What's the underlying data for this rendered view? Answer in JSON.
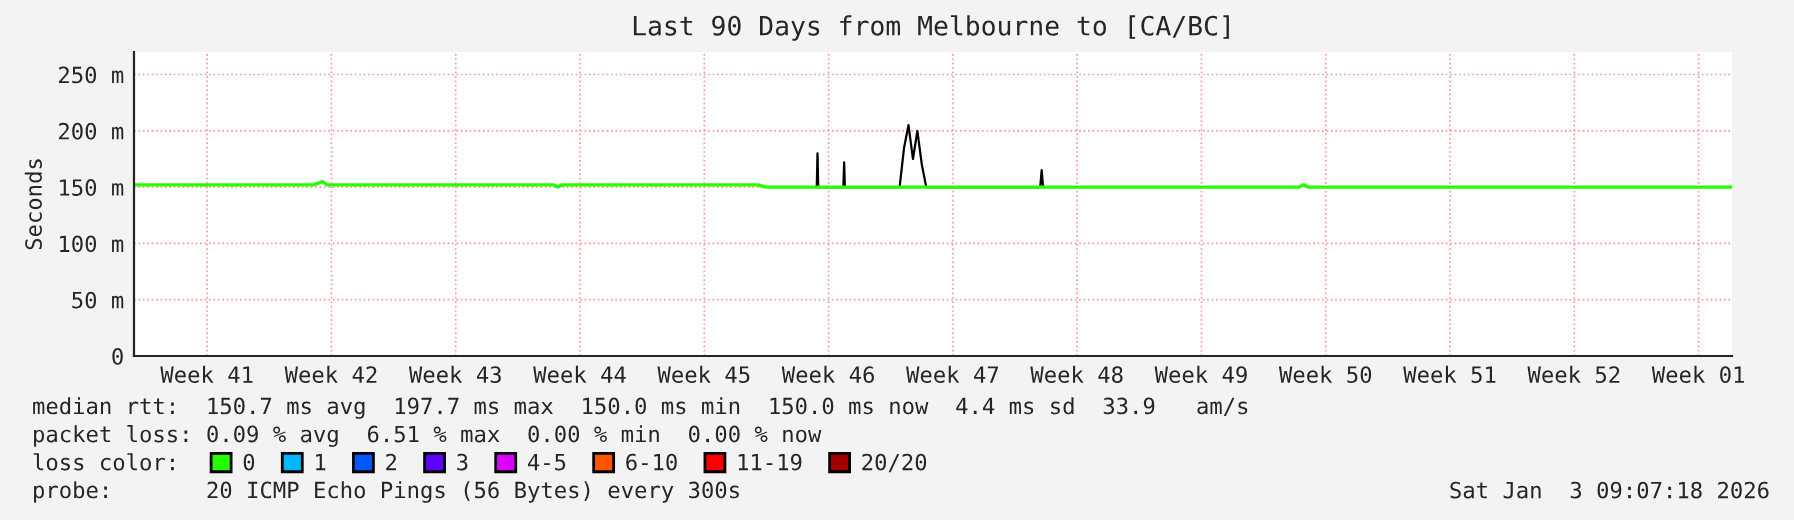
{
  "chart_data": {
    "type": "line",
    "title": "Last 90 Days from Melbourne to [CA/BC]",
    "ylabel": "Seconds",
    "xlim": [
      "2025-10-05T09:07",
      "2026-01-03T09:07"
    ],
    "xticks": [
      {
        "value": "2025-10-09T12:00",
        "label": "Week 41"
      },
      {
        "value": "2025-10-16T12:00",
        "label": "Week 42"
      },
      {
        "value": "2025-10-23T12:00",
        "label": "Week 43"
      },
      {
        "value": "2025-10-30T12:00",
        "label": "Week 44"
      },
      {
        "value": "2025-11-06T12:00",
        "label": "Week 45"
      },
      {
        "value": "2025-11-13T12:00",
        "label": "Week 46"
      },
      {
        "value": "2025-11-20T12:00",
        "label": "Week 47"
      },
      {
        "value": "2025-11-27T12:00",
        "label": "Week 48"
      },
      {
        "value": "2025-12-04T12:00",
        "label": "Week 49"
      },
      {
        "value": "2025-12-11T12:00",
        "label": "Week 50"
      },
      {
        "value": "2025-12-18T12:00",
        "label": "Week 51"
      },
      {
        "value": "2025-12-25T12:00",
        "label": "Week 52"
      },
      {
        "value": "2026-01-01T12:00",
        "label": "Week 01"
      }
    ],
    "ylim": [
      0,
      270
    ],
    "yticks": [
      0,
      {
        "value": 50,
        "label": "50 m"
      },
      {
        "value": 100,
        "label": "100 m"
      },
      {
        "value": 150,
        "label": "150 m"
      },
      {
        "value": 200,
        "label": "200 m"
      },
      {
        "value": 250,
        "label": "250 m"
      }
    ],
    "grid": true,
    "legend": "bottom left",
    "legend_title": "loss color:",
    "series": [
      {
        "color": "#000000",
        "x": [
          "2025-11-12T20:00",
          "2025-11-12T21:00",
          "2025-11-12T22:00",
          "2025-11-14T08:00",
          "2025-11-14T09:00",
          "2025-11-14T10:00",
          "2025-11-17T12:00",
          "2025-11-17T18:00",
          "2025-11-18T00:00",
          "2025-11-18T06:00",
          "2025-11-18T12:00",
          "2025-11-18T18:00",
          "2025-11-19T00:00",
          "2025-11-25T10:00",
          "2025-11-25T12:00",
          "2025-11-25T14:00"
        ],
        "values": [
          150,
          180,
          150,
          150,
          172,
          150,
          150,
          185,
          205,
          175,
          200,
          170,
          150,
          150,
          165,
          150
        ]
      },
      {
        "name": "0",
        "color": "#26ff00",
        "x": [
          "2025-10-05T09:07",
          "2025-10-15T12:00",
          "2025-10-16T00:00",
          "2025-10-16T06:00",
          "2025-10-29T00:00",
          "2025-10-29T06:00",
          "2025-10-29T12:00",
          "2025-11-09T12:00",
          "2025-11-10T00:00",
          "2025-12-10T00:00",
          "2025-12-10T06:00",
          "2025-12-10T12:00",
          "2026-01-03T09:07"
        ],
        "values": [
          152,
          152,
          155,
          152,
          152,
          150,
          152,
          152,
          150,
          150,
          152,
          150,
          150
        ]
      },
      {
        "name": "1",
        "color": "#00b8ff"
      },
      {
        "name": "2",
        "color": "#0059ff"
      },
      {
        "name": "3",
        "color": "#5e00ff"
      },
      {
        "name": "4-5",
        "color": "#dd00ff"
      },
      {
        "name": "6-10",
        "color": "#ff5500"
      },
      {
        "name": "11-19",
        "color": "#ff0000"
      },
      {
        "name": "20/20",
        "color": "#a10000"
      }
    ],
    "annotations": [
      "median rtt:  150.7 ms avg  197.7 ms max  150.0 ms min  150.0 ms now  4.4 ms sd  33.9   am/s",
      "packet loss: 0.09 % avg  6.51 % max  0.00 % min  0.00 % now",
      "probe:       20 ICMP Echo Pings (56 Bytes) every 300s",
      "Sat Jan  3 09:07:18 2026"
    ]
  }
}
